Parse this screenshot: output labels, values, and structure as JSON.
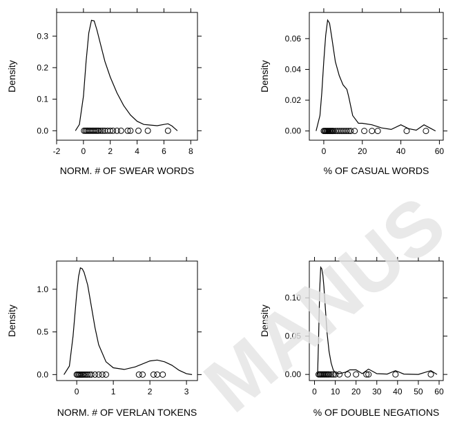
{
  "watermark_text": "MANUS",
  "chart_data": [
    {
      "type": "density",
      "xlabel": "NORM. # OF SWEAR WORDS",
      "ylabel": "Density",
      "xlim": [
        -2,
        8.5
      ],
      "ylim": [
        -0.03,
        0.375
      ],
      "xticks": [
        -2,
        0,
        2,
        4,
        6,
        8
      ],
      "yticks": [
        0.0,
        0.1,
        0.2,
        0.3
      ],
      "ytick_labels": [
        "0.0",
        "0.1",
        "0.2",
        "0.3"
      ],
      "density": {
        "x": [
          -0.6,
          -0.3,
          0,
          0.2,
          0.4,
          0.6,
          0.8,
          1.0,
          1.3,
          1.6,
          2.0,
          2.5,
          3.0,
          3.5,
          4.0,
          4.5,
          5.0,
          5.5,
          6.0,
          6.3,
          6.6,
          7.0
        ],
        "y": [
          0.0,
          0.02,
          0.11,
          0.22,
          0.31,
          0.35,
          0.348,
          0.32,
          0.27,
          0.22,
          0.17,
          0.12,
          0.08,
          0.05,
          0.03,
          0.02,
          0.018,
          0.016,
          0.02,
          0.022,
          0.015,
          0.0
        ]
      },
      "rug": [
        0.05,
        0.15,
        0.25,
        0.35,
        0.45,
        0.55,
        0.65,
        0.75,
        0.85,
        0.95,
        1.05,
        1.15,
        1.3,
        1.45,
        1.6,
        1.8,
        2.0,
        2.2,
        2.5,
        2.8,
        3.3,
        3.5,
        4.1,
        4.8,
        6.3
      ]
    },
    {
      "type": "density",
      "xlabel": "% OF CASUAL WORDS",
      "ylabel": "Density",
      "xlim": [
        -7.5,
        62
      ],
      "ylim": [
        -0.006,
        0.077
      ],
      "xticks": [
        0,
        20,
        40,
        60
      ],
      "yticks": [
        0.0,
        0.02,
        0.04,
        0.06
      ],
      "ytick_labels": [
        "0.00",
        "0.02",
        "0.04",
        "0.06"
      ],
      "density": {
        "x": [
          -4,
          -2,
          -1,
          0,
          1,
          2,
          3,
          4,
          6,
          8,
          10,
          12,
          13,
          15,
          18,
          20,
          25,
          30,
          35,
          40,
          44,
          48,
          52,
          55,
          58
        ],
        "y": [
          0.0,
          0.01,
          0.025,
          0.045,
          0.062,
          0.072,
          0.07,
          0.062,
          0.045,
          0.036,
          0.03,
          0.027,
          0.022,
          0.01,
          0.005,
          0.005,
          0.004,
          0.002,
          0.001,
          0.004,
          0.0015,
          0.0005,
          0.004,
          0.002,
          0.0
        ]
      },
      "rug": [
        0.0,
        0.5,
        1.0,
        1.5,
        2.0,
        2.5,
        3.0,
        3.5,
        4.0,
        4.5,
        5.0,
        6.0,
        7.0,
        8.0,
        9.0,
        10.0,
        11.0,
        12.0,
        13.0,
        14.0,
        16.0,
        21.0,
        25.0,
        28.0,
        43.0,
        53.0
      ]
    },
    {
      "type": "density",
      "xlabel": "NORM. # OF VERLAN TOKENS",
      "ylabel": "Density",
      "xlim": [
        -0.55,
        3.3
      ],
      "ylim": [
        -0.07,
        1.33
      ],
      "xticks": [
        0,
        1,
        2,
        3
      ],
      "yticks": [
        0.0,
        0.5,
        1.0
      ],
      "ytick_labels": [
        "0.0",
        "0.5",
        "1.0"
      ],
      "density": {
        "x": [
          -0.35,
          -0.2,
          -0.1,
          0,
          0.05,
          0.1,
          0.15,
          0.2,
          0.3,
          0.4,
          0.5,
          0.6,
          0.8,
          1.0,
          1.3,
          1.6,
          2.0,
          2.2,
          2.4,
          2.6,
          2.8,
          3.0,
          3.15
        ],
        "y": [
          0.0,
          0.1,
          0.45,
          0.95,
          1.15,
          1.25,
          1.24,
          1.2,
          1.05,
          0.8,
          0.55,
          0.35,
          0.15,
          0.08,
          0.06,
          0.09,
          0.16,
          0.17,
          0.15,
          0.11,
          0.05,
          0.01,
          0.0
        ]
      },
      "rug": [
        0.0,
        0.03,
        0.06,
        0.09,
        0.12,
        0.15,
        0.18,
        0.22,
        0.26,
        0.3,
        0.35,
        0.4,
        0.5,
        0.6,
        0.7,
        0.8,
        1.7,
        1.8,
        2.1,
        2.2,
        2.35
      ]
    },
    {
      "type": "density",
      "xlabel": "% OF DOUBLE NEGATIONS",
      "ylabel": "Density",
      "xlim": [
        -2.5,
        62
      ],
      "ylim": [
        -0.008,
        0.148
      ],
      "xticks": [
        0,
        10,
        20,
        30,
        40,
        50,
        60
      ],
      "yticks": [
        0.0,
        0.05,
        0.1
      ],
      "ytick_labels": [
        "0.00",
        "0.05",
        "0.10"
      ],
      "density": {
        "x": [
          1.5,
          2.0,
          2.5,
          3.0,
          3.5,
          4.0,
          4.5,
          5.0,
          5.5,
          6.0,
          7.0,
          8.0,
          9.0,
          10.0,
          12.0,
          15.0,
          17.0,
          20.0,
          23.0,
          26.0,
          30.0,
          35.0,
          39.0,
          43.0,
          50.0,
          56.0,
          59.0
        ],
        "y": [
          0.0,
          0.05,
          0.11,
          0.14,
          0.138,
          0.13,
          0.115,
          0.095,
          0.075,
          0.055,
          0.03,
          0.015,
          0.006,
          0.002,
          0.001,
          0.003,
          0.006,
          0.006,
          0.001,
          0.007,
          0.001,
          0.0005,
          0.005,
          0.0005,
          0.0,
          0.005,
          0.0
        ]
      },
      "rug": [
        2.0,
        2.5,
        3.0,
        3.5,
        4.0,
        4.5,
        5.0,
        5.5,
        6.0,
        6.5,
        7.0,
        8.0,
        9.0,
        10.0,
        12.0,
        16.0,
        20.0,
        25.0,
        26.0,
        39.0,
        56.0
      ]
    }
  ]
}
